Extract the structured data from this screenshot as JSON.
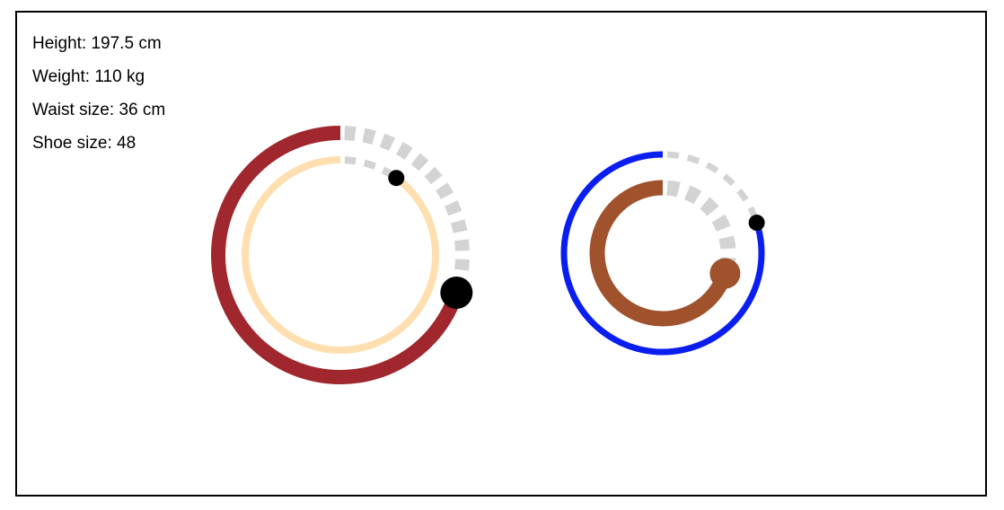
{
  "readouts": {
    "height": {
      "label": "Height",
      "value": "197.5",
      "unit": "cm"
    },
    "weight": {
      "label": "Weight",
      "value": "110",
      "unit": "kg"
    },
    "waist": {
      "label": "Waist size",
      "value": "36",
      "unit": "cm"
    },
    "shoe": {
      "label": "Shoe size",
      "value": "48",
      "unit": ""
    }
  },
  "dials": [
    {
      "name": "left-dial",
      "outer_ring": {
        "color": "#a0272d",
        "fraction": 0.7
      },
      "inner_ring": {
        "color": "#ffdfb0",
        "fraction": 0.9
      },
      "track_color": "#d3d3d3"
    },
    {
      "name": "right-dial",
      "outer_ring": {
        "color": "#0a1ef0",
        "fraction": 0.8
      },
      "inner_ring": {
        "color": "#a0522d",
        "fraction": 0.7
      },
      "track_color": "#d3d3d3"
    }
  ],
  "colors": {
    "border": "#000000",
    "handle": "#000000",
    "text": "#000000"
  }
}
